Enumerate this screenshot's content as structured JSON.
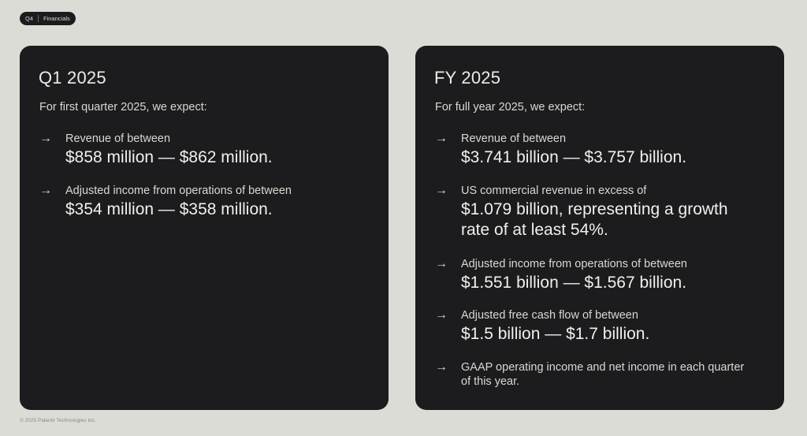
{
  "header": {
    "tag_quarter": "Q4",
    "tag_section": "Financials"
  },
  "left_card": {
    "title": "Q1 2025",
    "intro": "For first quarter 2025, we expect:",
    "items": [
      {
        "label": "Revenue of between",
        "value": "$858 million — $862 million."
      },
      {
        "label": "Adjusted income from operations of between",
        "value": "$354 million — $358 million."
      }
    ]
  },
  "right_card": {
    "title": "FY 2025",
    "intro": "For full year 2025, we expect:",
    "items": [
      {
        "label": "Revenue of between",
        "value": "$3.741 billion — $3.757 billion."
      },
      {
        "label": "US commercial revenue in excess of",
        "value": "$1.079 billion, representing a growth rate of at least 54%."
      },
      {
        "label": "Adjusted income from operations of between",
        "value": "$1.551 billion — $1.567 billion."
      },
      {
        "label": "Adjusted free cash flow of between",
        "value": "$1.5 billion — $1.7 billion."
      },
      {
        "label": "GAAP operating income and net income in each quarter of this year.",
        "value": ""
      }
    ]
  },
  "footer": {
    "copyright": "© 2025 Palantir Technologies Inc."
  },
  "icons": {
    "bullet": "right-arrow-icon"
  }
}
